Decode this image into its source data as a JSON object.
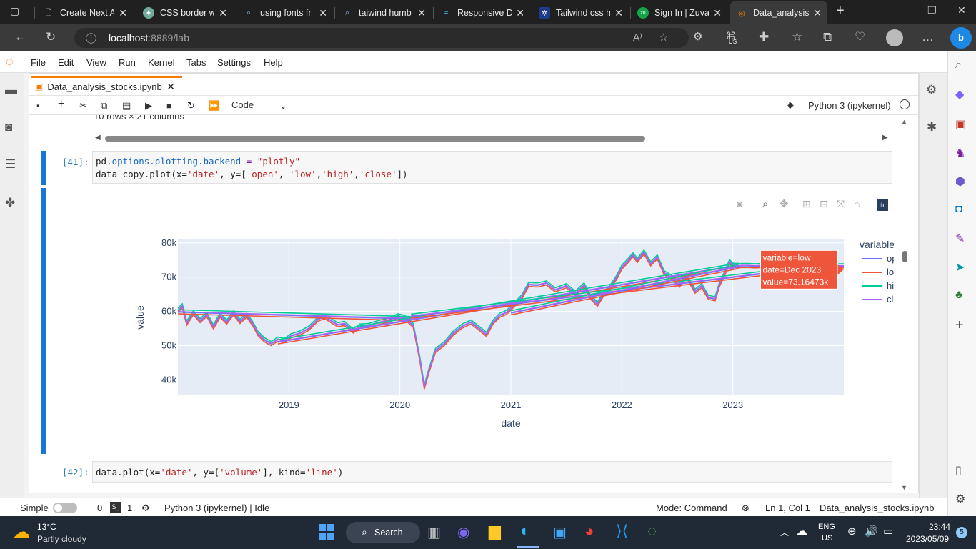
{
  "browser": {
    "tabs": [
      {
        "label": "Create Next A",
        "icon": "page-icon"
      },
      {
        "label": "CSS border wi",
        "icon": "chatgpt-icon"
      },
      {
        "label": "using fonts fr",
        "icon": "search-icon"
      },
      {
        "label": "taiwind humb",
        "icon": "search-icon"
      },
      {
        "label": "Responsive D",
        "icon": "wave-icon"
      },
      {
        "label": "Tailwind css h",
        "icon": "tailwind-icon"
      },
      {
        "label": "Sign In | Zuva",
        "icon": "zuva-icon"
      },
      {
        "label": "Data_analysis",
        "icon": "jupyter-icon"
      }
    ],
    "url_host": "localhost",
    "url_rest": ":8889/lab",
    "profile_region": "US"
  },
  "menu": [
    "File",
    "Edit",
    "View",
    "Run",
    "Kernel",
    "Tabs",
    "Settings",
    "Help"
  ],
  "notebook": {
    "tab_title": "Data_analysis_stocks.ipynb",
    "cell_type": "Code",
    "kernel": "Python 3 (ipykernel)",
    "partial_text": "10 rows × 21 columns",
    "cells": [
      {
        "prompt": "[41]:",
        "line1_a": "pd",
        "line1_b": ".options.plotting.backend",
        "line1_c": " = ",
        "line1_d": "\"plotly\"",
        "line2_a": "data_copy",
        "line2_b": ".plot(x=",
        "line2_c": "'date'",
        "line2_d": ", y=[",
        "line2_e": "'open'",
        "line2_f": ", ",
        "line2_g": "'low'",
        "line2_h": ",",
        "line2_i": "'high'",
        "line2_j": ",",
        "line2_k": "'close'",
        "line2_l": "])"
      },
      {
        "prompt": "[42]:",
        "text_a": "data",
        "text_b": ".plot(x=",
        "text_c": "'date'",
        "text_d": ", y=[",
        "text_e": "'volume'",
        "text_f": "], kind=",
        "text_g": "'line'",
        "text_h": ")"
      }
    ]
  },
  "chart_data": {
    "type": "line",
    "xlabel": "date",
    "ylabel": "value",
    "x_ticks": [
      "2019",
      "2020",
      "2021",
      "2022",
      "2023"
    ],
    "y_ticks": [
      "40k",
      "50k",
      "60k",
      "70k",
      "80k"
    ],
    "xlim": [
      2018.0,
      2024.0
    ],
    "ylim": [
      35500,
      81000
    ],
    "legend_title": "variable",
    "legend_position": "right",
    "series": [
      {
        "name": "open",
        "color": "#636efa"
      },
      {
        "name": "low",
        "color": "#ef553b"
      },
      {
        "name": "high",
        "color": "#00cc96"
      },
      {
        "name": "close",
        "color": "#ab63fa"
      }
    ],
    "points": [
      [
        2018.0,
        60200
      ],
      [
        2018.04,
        61500
      ],
      [
        2018.08,
        56500
      ],
      [
        2018.14,
        59500
      ],
      [
        2018.2,
        57200
      ],
      [
        2018.26,
        59000
      ],
      [
        2018.32,
        55400
      ],
      [
        2018.38,
        58800
      ],
      [
        2018.44,
        56800
      ],
      [
        2018.5,
        59400
      ],
      [
        2018.56,
        57000
      ],
      [
        2018.62,
        58800
      ],
      [
        2018.68,
        56000
      ],
      [
        2018.72,
        53500
      ],
      [
        2018.78,
        51600
      ],
      [
        2018.84,
        50500
      ],
      [
        2018.9,
        51800
      ],
      [
        2018.96,
        51400
      ],
      [
        2019.02,
        52800
      ],
      [
        2019.1,
        53600
      ],
      [
        2019.18,
        55000
      ],
      [
        2019.26,
        57600
      ],
      [
        2019.32,
        58400
      ],
      [
        2019.38,
        57200
      ],
      [
        2019.44,
        56000
      ],
      [
        2019.5,
        56400
      ],
      [
        2019.58,
        54200
      ],
      [
        2019.64,
        55600
      ],
      [
        2019.72,
        55800
      ],
      [
        2019.8,
        56600
      ],
      [
        2019.88,
        57200
      ],
      [
        2019.94,
        57900
      ],
      [
        2019.98,
        58600
      ],
      [
        2020.04,
        58200
      ],
      [
        2020.12,
        55800
      ],
      [
        2020.18,
        46000
      ],
      [
        2020.22,
        37800
      ],
      [
        2020.26,
        42500
      ],
      [
        2020.32,
        48500
      ],
      [
        2020.4,
        50500
      ],
      [
        2020.48,
        53500
      ],
      [
        2020.56,
        55600
      ],
      [
        2020.64,
        56800
      ],
      [
        2020.72,
        54800
      ],
      [
        2020.78,
        53200
      ],
      [
        2020.84,
        56800
      ],
      [
        2020.9,
        58800
      ],
      [
        2020.96,
        59600
      ],
      [
        2021.02,
        61500
      ],
      [
        2021.1,
        64200
      ],
      [
        2021.16,
        67800
      ],
      [
        2021.24,
        67600
      ],
      [
        2021.32,
        68200
      ],
      [
        2021.4,
        66200
      ],
      [
        2021.5,
        67400
      ],
      [
        2021.58,
        65200
      ],
      [
        2021.66,
        67600
      ],
      [
        2021.72,
        64000
      ],
      [
        2021.78,
        62000
      ],
      [
        2021.84,
        65200
      ],
      [
        2021.9,
        67200
      ],
      [
        2021.96,
        70200
      ],
      [
        2022.0,
        72800
      ],
      [
        2022.05,
        74500
      ],
      [
        2022.1,
        76400
      ],
      [
        2022.14,
        74800
      ],
      [
        2022.2,
        77200
      ],
      [
        2022.26,
        73800
      ],
      [
        2022.32,
        75800
      ],
      [
        2022.38,
        71200
      ],
      [
        2022.46,
        69600
      ],
      [
        2022.52,
        67600
      ],
      [
        2022.58,
        70400
      ],
      [
        2022.66,
        65800
      ],
      [
        2022.72,
        67400
      ],
      [
        2022.78,
        64000
      ],
      [
        2022.84,
        63600
      ],
      [
        2022.88,
        67800
      ],
      [
        2022.93,
        71200
      ],
      [
        2022.97,
        74400
      ],
      [
        2023.0,
        73400
      ],
      [
        2023.04,
        73200
      ],
      [
        2023.08,
        73300
      ],
      [
        2023.14,
        73300
      ],
      [
        2023.2,
        73200
      ],
      [
        2023.26,
        73300
      ],
      [
        2023.32,
        73200
      ],
      [
        2023.4,
        73300
      ],
      [
        2023.5,
        73200
      ],
      [
        2023.6,
        73200
      ],
      [
        2023.7,
        73200
      ],
      [
        2023.8,
        73250
      ],
      [
        2023.92,
        73200
      ],
      [
        2024.0,
        73200
      ]
    ],
    "hover": {
      "line1": "variable=low",
      "line2": "date=Dec 2023",
      "line3": "value=73.16473k"
    }
  },
  "status": {
    "mode_label": "Simple",
    "terminals": "0",
    "kernels": "1",
    "kernel_status": "Python 3 (ipykernel) | Idle",
    "mode": "Mode: Command",
    "cursor": "Ln 1, Col 1",
    "filename": "Data_analysis_stocks.ipynb"
  },
  "taskbar": {
    "temp": "13°C",
    "weather": "Partly cloudy",
    "search": "Search",
    "lang1": "ENG",
    "lang2": "US",
    "time": "23:44",
    "date": "2023/05/09",
    "notif": "5"
  }
}
